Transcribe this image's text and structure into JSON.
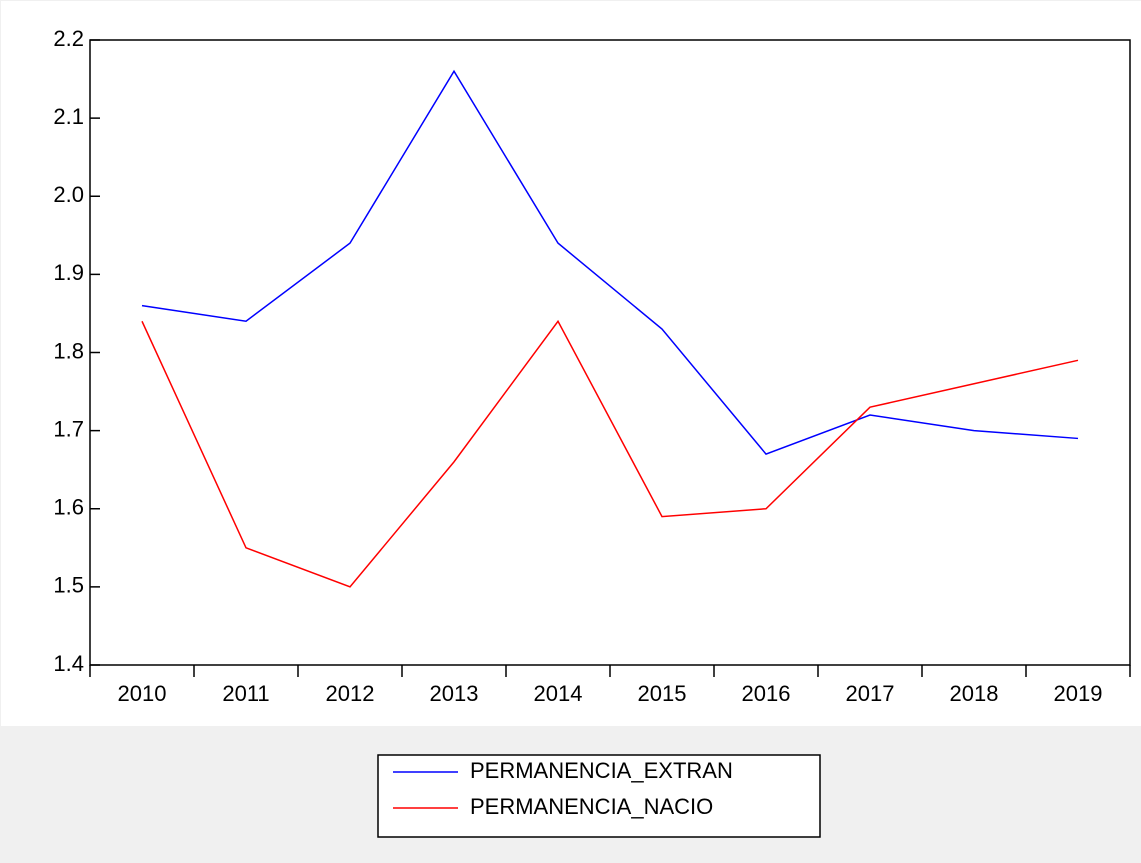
{
  "chart_data": {
    "type": "line",
    "categories": [
      "2010",
      "2011",
      "2012",
      "2013",
      "2014",
      "2015",
      "2016",
      "2017",
      "2018",
      "2019"
    ],
    "series": [
      {
        "name": "PERMANENCIA_EXTRAN",
        "color": "#0000ff",
        "values": [
          1.86,
          1.84,
          1.94,
          2.16,
          1.94,
          1.83,
          1.67,
          1.72,
          1.7,
          1.69
        ]
      },
      {
        "name": "PERMANENCIA_NACIO",
        "color": "#ff0000",
        "values": [
          1.84,
          1.55,
          1.5,
          1.66,
          1.84,
          1.59,
          1.6,
          1.73,
          1.76,
          1.79
        ]
      }
    ],
    "ylim": [
      1.4,
      2.2
    ],
    "yticks": [
      1.4,
      1.5,
      1.6,
      1.7,
      1.8,
      1.9,
      {
        "value": 2,
        "label": "2.0"
      },
      2.1,
      2.2
    ],
    "legend": "bottom"
  }
}
